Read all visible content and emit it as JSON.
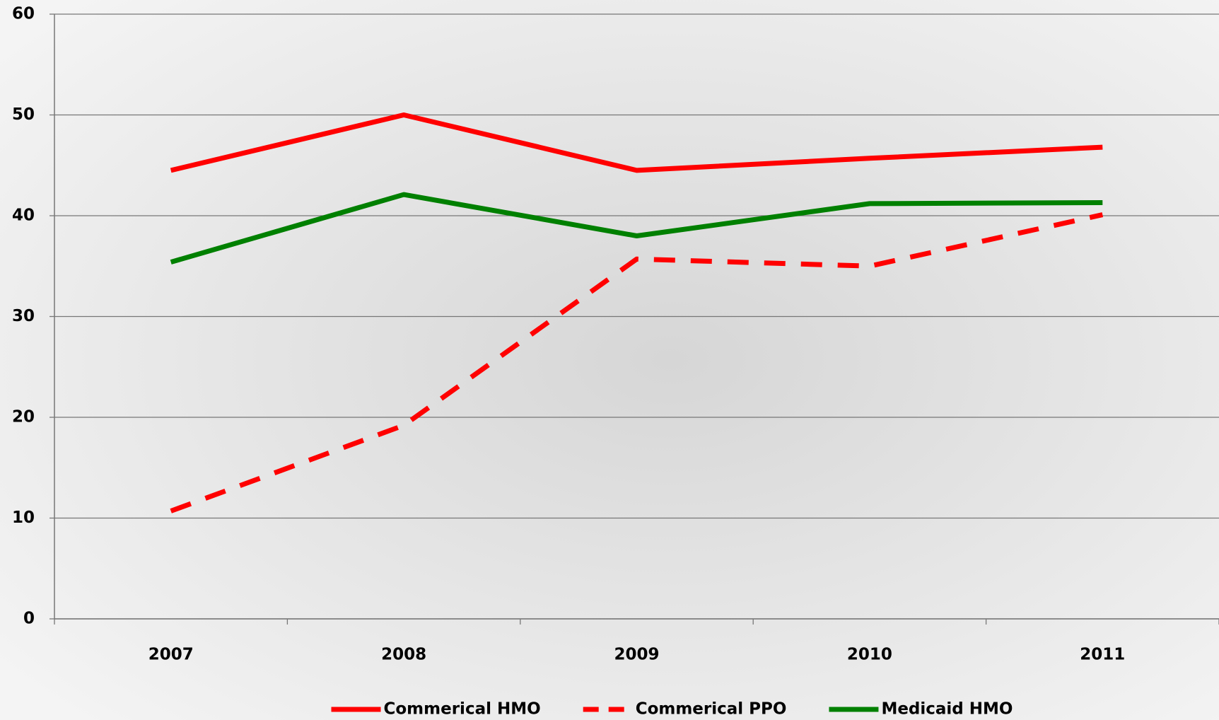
{
  "chart_data": {
    "type": "line",
    "categories": [
      "2007",
      "2008",
      "2009",
      "2010",
      "2011"
    ],
    "series": [
      {
        "name": "Commerical HMO",
        "color": "#ff0000",
        "dash": false,
        "values": [
          44.5,
          50,
          44.5,
          45.7,
          46.8
        ]
      },
      {
        "name": "Commerical PPO",
        "color": "#ff0000",
        "dash": true,
        "values": [
          10.7,
          19.2,
          35.7,
          35,
          40.1
        ]
      },
      {
        "name": "Medicaid HMO",
        "color": "#008000",
        "dash": false,
        "values": [
          35.4,
          42.1,
          38,
          41.2,
          41.3
        ]
      }
    ],
    "ylim": [
      0,
      60
    ],
    "yticks": [
      0,
      10,
      20,
      30,
      40,
      50,
      60
    ],
    "grid": true,
    "legend": "bottom"
  }
}
